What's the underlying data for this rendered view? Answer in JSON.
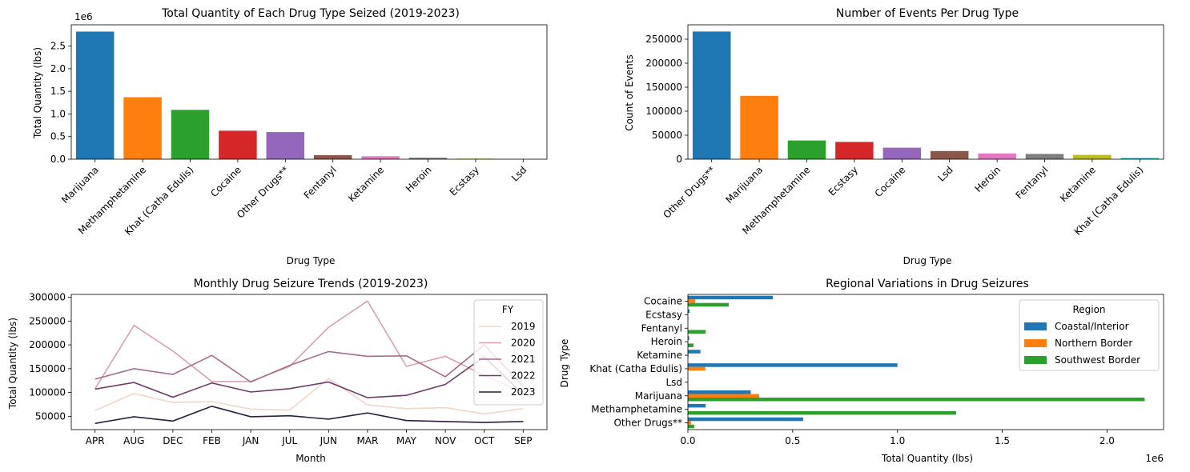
{
  "chart_data": [
    {
      "type": "bar",
      "title": "Total Quantity of Each Drug Type Seized (2019-2023)",
      "xlabel": "Drug Type",
      "ylabel": "Total Quantity (lbs)",
      "offset_label": "1e6",
      "categories": [
        "Marijuana",
        "Methamphetamine",
        "Khat (Catha Edulis)",
        "Cocaine",
        "Other Drugs**",
        "Fentanyl",
        "Ketamine",
        "Heroin",
        "Ecstasy",
        "Lsd"
      ],
      "values": [
        2820000,
        1370000,
        1090000,
        630000,
        600000,
        90000,
        65000,
        33000,
        12000,
        1000
      ],
      "colors": [
        "#1f77b4",
        "#ff7f0e",
        "#2ca02c",
        "#d62728",
        "#9467bd",
        "#8c564b",
        "#e377c2",
        "#7f7f7f",
        "#bcbd22",
        "#17becf"
      ],
      "ylim": [
        0,
        2970000
      ],
      "yticks": [
        0,
        500000,
        1000000,
        1500000,
        2000000,
        2500000
      ],
      "ytick_labels": [
        "0.0",
        "0.5",
        "1.0",
        "1.5",
        "2.0",
        "2.5"
      ]
    },
    {
      "type": "bar",
      "title": "Number of Events Per Drug Type",
      "xlabel": "Drug Type",
      "ylabel": "Count of Events",
      "categories": [
        "Other Drugs**",
        "Marijuana",
        "Methamphetamine",
        "Ecstasy",
        "Cocaine",
        "Lsd",
        "Heroin",
        "Fentanyl",
        "Ketamine",
        "Khat (Catha Edulis)"
      ],
      "values": [
        266000,
        132000,
        39000,
        36000,
        24000,
        17000,
        12000,
        11000,
        9000,
        2500
      ],
      "colors": [
        "#1f77b4",
        "#ff7f0e",
        "#2ca02c",
        "#d62728",
        "#9467bd",
        "#8c564b",
        "#e377c2",
        "#7f7f7f",
        "#bcbd22",
        "#17becf"
      ],
      "ylim": [
        0,
        280000
      ],
      "yticks": [
        0,
        50000,
        100000,
        150000,
        200000,
        250000
      ],
      "ytick_labels": [
        "0",
        "50000",
        "100000",
        "150000",
        "200000",
        "250000"
      ]
    },
    {
      "type": "line",
      "title": "Monthly Drug Seizure Trends (2019-2023)",
      "xlabel": "Month",
      "ylabel": "Total Quantity (lbs)",
      "categories": [
        "APR",
        "AUG",
        "DEC",
        "FEB",
        "JAN",
        "JUL",
        "JUN",
        "MAR",
        "MAY",
        "NOV",
        "OCT",
        "SEP"
      ],
      "ylim": [
        22000,
        306000
      ],
      "yticks": [
        50000,
        100000,
        150000,
        200000,
        250000,
        300000
      ],
      "ytick_labels": [
        "50000",
        "100000",
        "150000",
        "200000",
        "250000",
        "300000"
      ],
      "legend": {
        "title": "FY",
        "placement": "upper right"
      },
      "series": [
        {
          "name": "2019",
          "color": "#f0d6c8",
          "values": [
            62000,
            98000,
            79000,
            81000,
            65000,
            63000,
            129000,
            74000,
            66000,
            68000,
            55000,
            66000
          ]
        },
        {
          "name": "2020",
          "color": "#d8a0ae",
          "values": [
            108000,
            241000,
            187000,
            123000,
            123000,
            155000,
            237000,
            292000,
            155000,
            176000,
            136000,
            100000
          ]
        },
        {
          "name": "2021",
          "color": "#a86a8d",
          "values": [
            128000,
            150000,
            138000,
            178000,
            122000,
            157000,
            186000,
            176000,
            177000,
            133000,
            200000,
            113000
          ]
        },
        {
          "name": "2022",
          "color": "#6d3c6b",
          "values": [
            107000,
            121000,
            90000,
            120000,
            101000,
            108000,
            122000,
            89000,
            94000,
            117000,
            175000,
            96000
          ]
        },
        {
          "name": "2023",
          "color": "#2d1e3e",
          "values": [
            35000,
            49000,
            40000,
            71000,
            49000,
            51000,
            44000,
            57000,
            41000,
            39000,
            37000,
            39000
          ]
        }
      ]
    },
    {
      "type": "bar",
      "orientation": "horizontal",
      "title": "Regional Variations in Drug Seizures",
      "xlabel": "Total Quantity (lbs)",
      "ylabel": "Drug Type",
      "offset_label": "1e6",
      "categories": [
        "Cocaine",
        "Ecstasy",
        "Fentanyl",
        "Heroin",
        "Ketamine",
        "Khat (Catha Edulis)",
        "Lsd",
        "Marijuana",
        "Methamphetamine",
        "Other Drugs**"
      ],
      "xlim": [
        0,
        2270000
      ],
      "xticks": [
        0,
        500000,
        1000000,
        1500000,
        2000000
      ],
      "xtick_labels": [
        "0.0",
        "0.5",
        "1.0",
        "1.5",
        "2.0"
      ],
      "legend": {
        "title": "Region",
        "placement": "upper right"
      },
      "series": [
        {
          "name": "Coastal/Interior",
          "color": "#1f77b4",
          "values": [
            405000,
            8000,
            0,
            6000,
            60000,
            1000000,
            500,
            300000,
            85000,
            550000
          ]
        },
        {
          "name": "Northern Border",
          "color": "#ff7f0e",
          "values": [
            35000,
            0,
            0,
            0,
            3000,
            83000,
            0,
            340000,
            2000,
            15000
          ]
        },
        {
          "name": "Southwest Border",
          "color": "#2ca02c",
          "values": [
            195000,
            2000,
            85000,
            27000,
            0,
            0,
            300,
            2180000,
            1280000,
            30000
          ]
        }
      ]
    }
  ]
}
